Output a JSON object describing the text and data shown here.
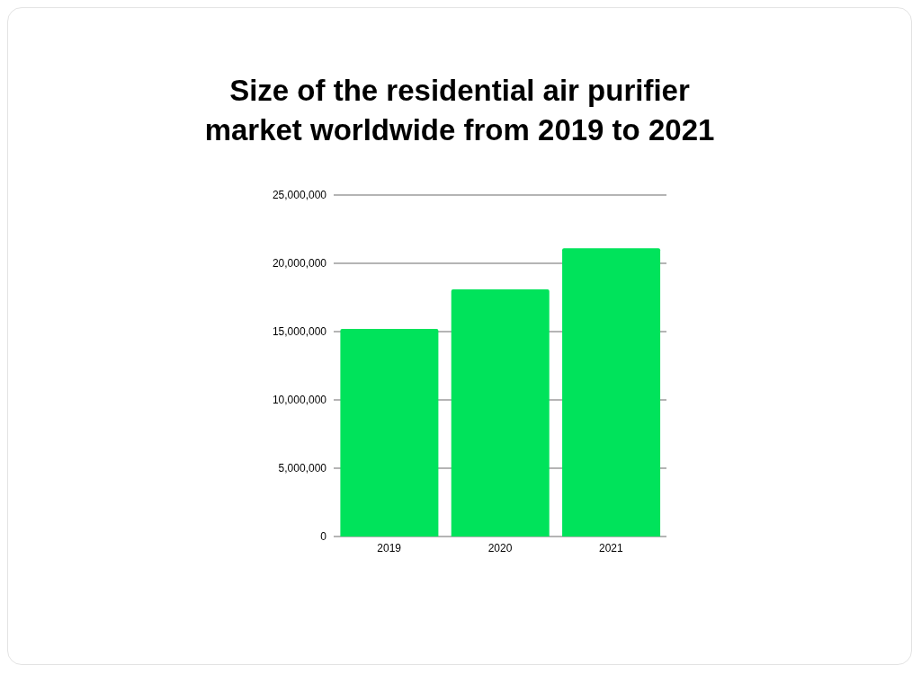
{
  "chart_data": {
    "type": "bar",
    "title": "Size of the residential air purifier market worldwide from 2019 to 2021",
    "categories": [
      "2019",
      "2020",
      "2021"
    ],
    "values": [
      15200000,
      18100000,
      21100000
    ],
    "color": "#00e35b",
    "ylim": [
      0,
      25000000
    ],
    "yticks": [
      0,
      {
        "value": 5000000,
        "label": "5,000,000"
      },
      {
        "value": 10000000,
        "label": "10,000,000"
      },
      {
        "value": 15000000,
        "label": "15,000,000"
      },
      {
        "value": 20000000,
        "label": "20,000,000"
      },
      {
        "value": 25000000,
        "label": "25,000,000"
      }
    ],
    "grid": "y"
  }
}
